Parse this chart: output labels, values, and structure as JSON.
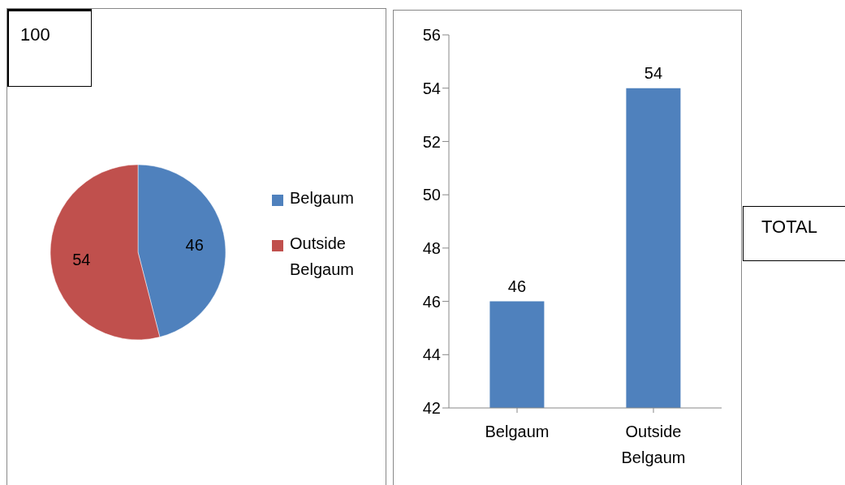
{
  "chart_data": [
    {
      "type": "pie",
      "categories": [
        "Belgaum",
        "Outside Belgaum"
      ],
      "values": [
        46,
        54
      ],
      "colors": [
        "#4f81bd",
        "#c0504d"
      ],
      "data_labels": true,
      "legend": "right",
      "annotations": [
        "100"
      ]
    },
    {
      "type": "bar",
      "categories": [
        "Belgaum",
        "Outside Belgaum"
      ],
      "values": [
        46,
        54
      ],
      "color": "#4f81bd",
      "ylim": [
        42,
        56
      ],
      "yticks": [
        42,
        44,
        46,
        48,
        50,
        52,
        54,
        56
      ],
      "data_labels": true,
      "grid": false,
      "annotations": [
        "TOTAL"
      ]
    }
  ]
}
